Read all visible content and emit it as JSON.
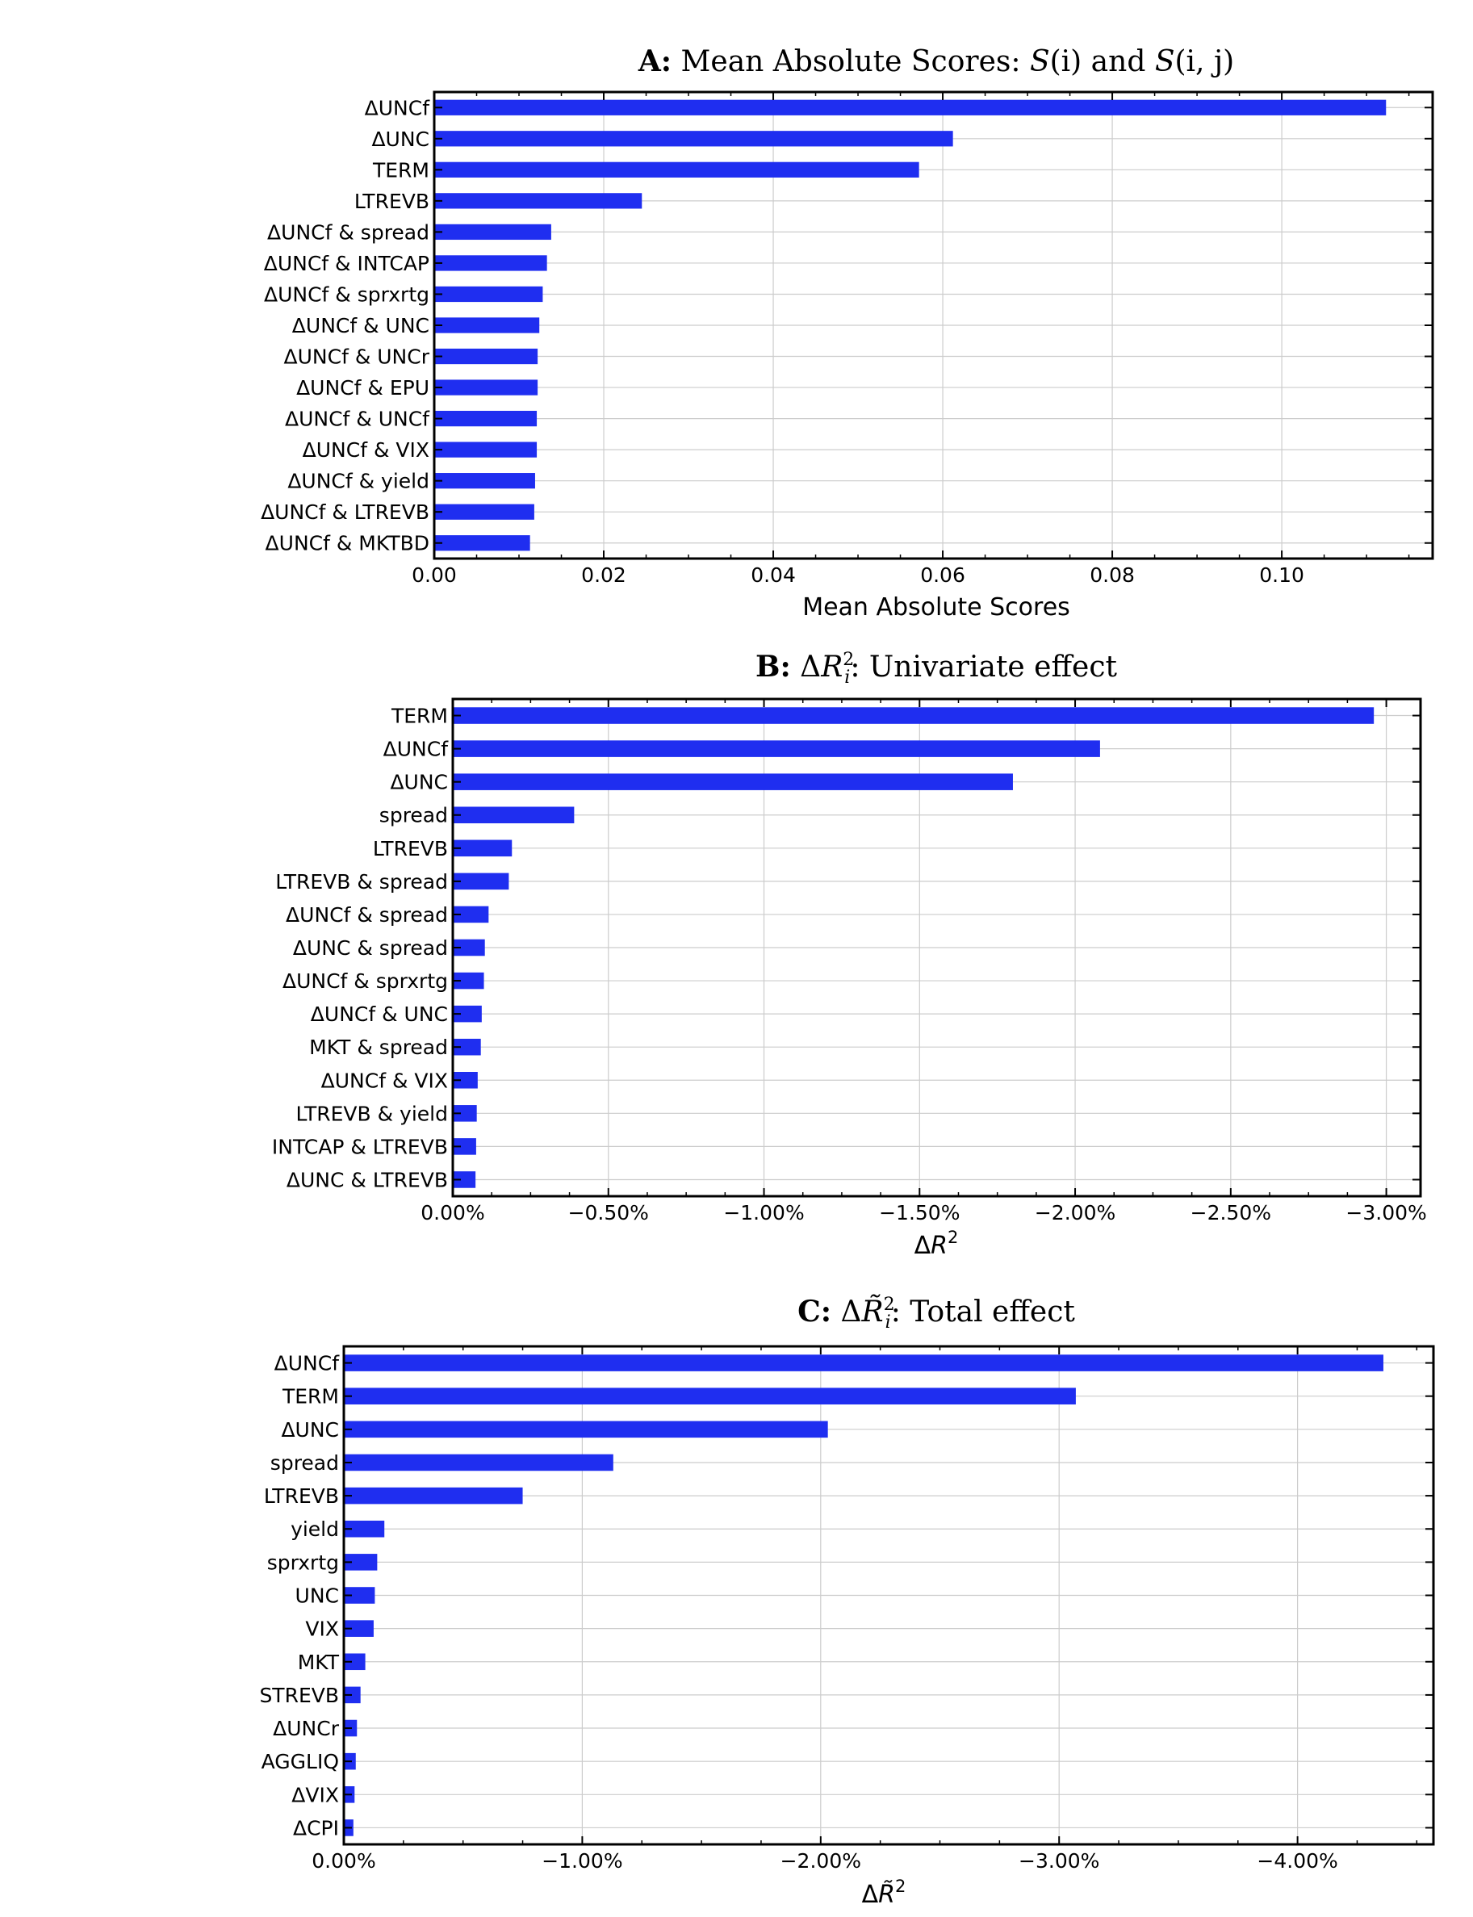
{
  "chart_data": [
    {
      "type": "bar",
      "orientation": "horizontal",
      "title": {
        "prefix": "A:",
        "main": " Mean Absolute Scores: ",
        "s1": "S",
        "s1_args": "(i)",
        "conj": " and ",
        "s2": "S",
        "s2_args": "(i, j)"
      },
      "xlabel": "Mean Absolute Scores",
      "xlim": [
        0,
        0.1178
      ],
      "xticks": [
        0.0,
        0.02,
        0.04,
        0.06,
        0.08,
        0.1
      ],
      "xtick_labels": [
        "0.00",
        "0.02",
        "0.04",
        "0.06",
        "0.08",
        "0.10"
      ],
      "grid": true,
      "bar_color": "#1f2ef0",
      "categories": [
        "ΔUNCf",
        "ΔUNC",
        "TERM",
        "LTREVB",
        "ΔUNCf & spread",
        "ΔUNCf & INTCAP",
        "ΔUNCf & sprxrtg",
        "ΔUNCf & UNC",
        "ΔUNCf & UNCr",
        "ΔUNCf & EPU",
        "ΔUNCf & UNCf",
        "ΔUNCf & VIX",
        "ΔUNCf & yield",
        "ΔUNCf & LTREVB",
        "ΔUNCf & MKTBD"
      ],
      "values": [
        0.1123,
        0.0612,
        0.0572,
        0.0245,
        0.0138,
        0.0133,
        0.0128,
        0.0124,
        0.0122,
        0.0122,
        0.0121,
        0.0121,
        0.0119,
        0.0118,
        0.0113
      ]
    },
    {
      "type": "bar",
      "orientation": "horizontal",
      "title": {
        "prefix": "B:",
        "delta": " Δ",
        "sym": "R",
        "sup": "2",
        "sub": "i",
        "rest": ": Univariate effect"
      },
      "xlabel": {
        "delta": "Δ",
        "sym": "R",
        "sup": "2"
      },
      "xlim": [
        0,
        -3.11
      ],
      "xticks": [
        0,
        -0.5,
        -1.0,
        -1.5,
        -2.0,
        -2.5,
        -3.0
      ],
      "xtick_labels": [
        "0.00%",
        "−0.50%",
        "−1.00%",
        "−1.50%",
        "−2.00%",
        "−2.50%",
        "−3.00%"
      ],
      "value_unit": "%",
      "grid": true,
      "bar_color": "#1f2ef0",
      "categories": [
        "TERM",
        "ΔUNCf",
        "ΔUNC",
        "spread",
        "LTREVB",
        "LTREVB & spread",
        "ΔUNCf & spread",
        "ΔUNC & spread",
        "ΔUNCf & sprxrtg",
        "ΔUNCf & UNC",
        "MKT & spread",
        "ΔUNCf & VIX",
        "LTREVB & yield",
        "INTCAP & LTREVB",
        "ΔUNC & LTREVB"
      ],
      "values": [
        -2.96,
        -2.08,
        -1.8,
        -0.39,
        -0.19,
        -0.18,
        -0.115,
        -0.103,
        -0.1,
        -0.093,
        -0.09,
        -0.08,
        -0.077,
        -0.075,
        -0.073
      ]
    },
    {
      "type": "bar",
      "orientation": "horizontal",
      "title": {
        "prefix": "C:",
        "delta": " Δ",
        "sym": "R̃",
        "sup": "2",
        "sub": "i",
        "rest": ": Total effect"
      },
      "xlabel": {
        "delta": "Δ",
        "sym": "R̃",
        "sup": "2"
      },
      "xlim": [
        0,
        -4.57
      ],
      "xticks": [
        0,
        -1.0,
        -2.0,
        -3.0,
        -4.0
      ],
      "xtick_labels": [
        "0.00%",
        "−1.00%",
        "−2.00%",
        "−3.00%",
        "−4.00%"
      ],
      "value_unit": "%",
      "grid": true,
      "bar_color": "#1f2ef0",
      "categories": [
        "ΔUNCf",
        "TERM",
        "ΔUNC",
        "spread",
        "LTREVB",
        "yield",
        "sprxrtg",
        "UNC",
        "VIX",
        "MKT",
        "STREVB",
        "ΔUNCr",
        "AGGLIQ",
        "ΔVIX",
        "ΔCPI"
      ],
      "values": [
        -4.36,
        -3.07,
        -2.03,
        -1.13,
        -0.75,
        -0.17,
        -0.14,
        -0.13,
        -0.125,
        -0.09,
        -0.07,
        -0.055,
        -0.05,
        -0.045,
        -0.04
      ]
    }
  ]
}
